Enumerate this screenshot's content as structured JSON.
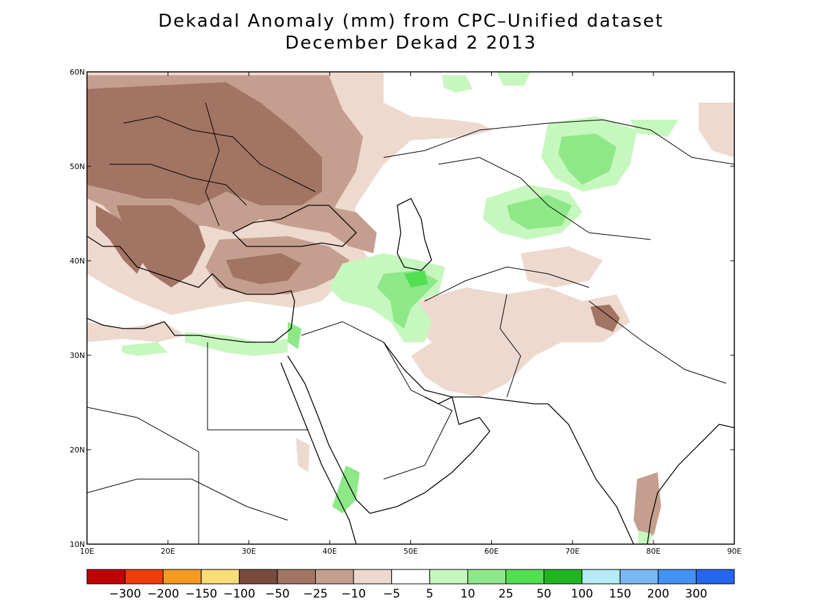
{
  "title": {
    "line1": "Dekadal Anomaly (mm) from CPC–Unified dataset",
    "line2": "December Dekad 2 2013"
  },
  "map": {
    "lon_range": [
      10,
      90
    ],
    "lat_range": [
      10,
      60
    ],
    "lon_ticks": [
      "10E",
      "20E",
      "30E",
      "40E",
      "50E",
      "60E",
      "70E",
      "80E",
      "90E"
    ],
    "lat_ticks": [
      "60N",
      "50N",
      "40N",
      "30N",
      "20N",
      "10N"
    ]
  },
  "colorbar": {
    "colors": [
      "#c00000",
      "#f03c0a",
      "#f59a1e",
      "#fadc78",
      "#7a4a3e",
      "#a27464",
      "#c49e8e",
      "#eed9cf",
      "#ffffff",
      "#c6f7be",
      "#8ee888",
      "#52e052",
      "#20b520",
      "#b2ecf4",
      "#78b8f4",
      "#4292f4",
      "#2466f0"
    ],
    "labels": [
      "−300",
      "−200",
      "−150",
      "−100",
      "−50",
      "−25",
      "−10",
      "−5",
      "5",
      "10",
      "25",
      "50",
      "100",
      "150",
      "200",
      "300"
    ]
  }
}
